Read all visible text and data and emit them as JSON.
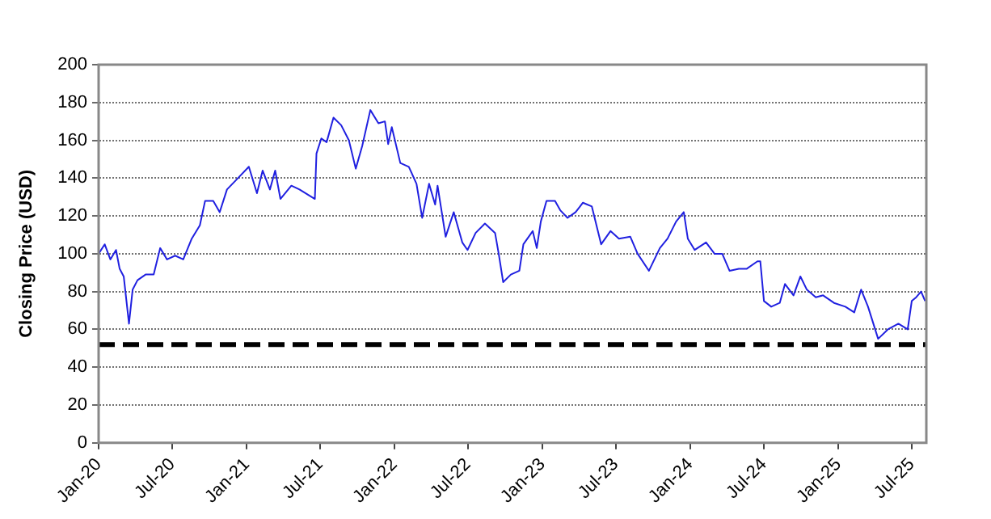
{
  "chart_data": {
    "type": "line",
    "ylabel": "Closing Price (USD)",
    "x": [
      "2020-01-01",
      "2020-01-16",
      "2020-01-30",
      "2020-02-13",
      "2020-02-22",
      "2020-03-03",
      "2020-03-16",
      "2020-03-25",
      "2020-04-06",
      "2020-04-26",
      "2020-05-16",
      "2020-06-01",
      "2020-06-18",
      "2020-07-08",
      "2020-07-28",
      "2020-08-18",
      "2020-09-07",
      "2020-09-20",
      "2020-10-10",
      "2020-10-26",
      "2020-11-13",
      "2020-12-10",
      "2021-01-06",
      "2021-01-26",
      "2021-02-09",
      "2021-02-27",
      "2021-03-12",
      "2021-03-25",
      "2021-04-21",
      "2021-05-11",
      "2021-06-18",
      "2021-06-22",
      "2021-07-04",
      "2021-07-17",
      "2021-08-03",
      "2021-08-22",
      "2021-09-10",
      "2021-09-27",
      "2021-10-13",
      "2021-11-02",
      "2021-11-22",
      "2021-12-08",
      "2021-12-16",
      "2021-12-25",
      "2022-01-15",
      "2022-02-05",
      "2022-02-24",
      "2022-03-10",
      "2022-03-27",
      "2022-04-11",
      "2022-04-17",
      "2022-05-07",
      "2022-05-27",
      "2022-06-17",
      "2022-06-30",
      "2022-07-20",
      "2022-08-12",
      "2022-09-06",
      "2022-09-15",
      "2022-09-26",
      "2022-10-15",
      "2022-11-05",
      "2022-11-15",
      "2022-12-08",
      "2022-12-18",
      "2022-12-28",
      "2023-01-11",
      "2023-02-01",
      "2023-02-14",
      "2023-03-04",
      "2023-03-24",
      "2023-04-11",
      "2023-05-03",
      "2023-05-26",
      "2023-06-18",
      "2023-07-09",
      "2023-08-06",
      "2023-08-24",
      "2023-09-21",
      "2023-10-18",
      "2023-11-06",
      "2023-11-27",
      "2023-12-16",
      "2023-12-26",
      "2024-01-12",
      "2024-02-09",
      "2024-03-01",
      "2024-03-20",
      "2024-04-07",
      "2024-04-30",
      "2024-05-19",
      "2024-06-15",
      "2024-06-22",
      "2024-07-01",
      "2024-07-19",
      "2024-08-09",
      "2024-08-22",
      "2024-09-12",
      "2024-09-29",
      "2024-10-15",
      "2024-11-06",
      "2024-11-24",
      "2024-12-21",
      "2025-01-18",
      "2025-02-09",
      "2025-02-26",
      "2025-03-15",
      "2025-04-09",
      "2025-05-03",
      "2025-05-29",
      "2025-06-21",
      "2025-07-01",
      "2025-07-12",
      "2025-07-24",
      "2025-08-03"
    ],
    "series": [
      {
        "color": "#2020e0",
        "values": [
          100,
          105,
          97,
          102,
          92,
          88,
          63,
          81,
          86,
          89,
          89,
          103,
          97,
          99,
          97,
          108,
          115,
          128,
          128,
          122,
          134,
          140,
          146,
          132,
          144,
          134,
          144,
          129,
          136,
          134,
          129,
          153,
          161,
          159,
          172,
          168,
          160,
          145,
          157,
          176,
          169,
          170,
          158,
          167,
          148,
          146,
          137,
          119,
          137,
          126,
          136,
          109,
          122,
          106,
          102,
          111,
          116,
          111,
          100,
          85,
          89,
          91,
          105,
          112,
          103,
          117,
          128,
          128,
          123,
          119,
          122,
          127,
          125,
          105,
          112,
          108,
          109,
          100,
          91,
          103,
          108,
          117,
          122,
          108,
          102,
          106,
          100,
          100,
          91,
          92,
          92,
          96,
          96,
          75,
          72,
          74,
          84,
          78,
          88,
          81,
          77,
          78,
          74,
          72,
          69,
          81,
          72,
          55,
          60,
          63,
          60,
          75,
          77,
          80,
          75
        ]
      }
    ],
    "xlim": [
      "2020-01-01",
      "2025-08-06"
    ],
    "xticks": [
      {
        "value": "2020-01-01",
        "label": "Jan-20"
      },
      {
        "value": "2020-07-01",
        "label": "Jul-20"
      },
      {
        "value": "2021-01-01",
        "label": "Jan-21"
      },
      {
        "value": "2021-07-01",
        "label": "Jul-21"
      },
      {
        "value": "2022-01-01",
        "label": "Jan-22"
      },
      {
        "value": "2022-07-01",
        "label": "Jul-22"
      },
      {
        "value": "2023-01-01",
        "label": "Jan-23"
      },
      {
        "value": "2023-07-01",
        "label": "Jul-23"
      },
      {
        "value": "2024-01-01",
        "label": "Jan-24"
      },
      {
        "value": "2024-07-01",
        "label": "Jul-24"
      },
      {
        "value": "2025-01-01",
        "label": "Jan-25"
      },
      {
        "value": "2025-07-01",
        "label": "Jul-25"
      }
    ],
    "ylim": [
      0,
      200
    ],
    "yticks": [
      0,
      20,
      40,
      60,
      80,
      100,
      120,
      140,
      160,
      180,
      200
    ],
    "grid": "y",
    "legend": false,
    "marker": "none",
    "line_style": "solid",
    "ref_lines": [
      {
        "axis": "y",
        "value": 52,
        "color": "#000000",
        "line_style": "dashed"
      }
    ]
  }
}
